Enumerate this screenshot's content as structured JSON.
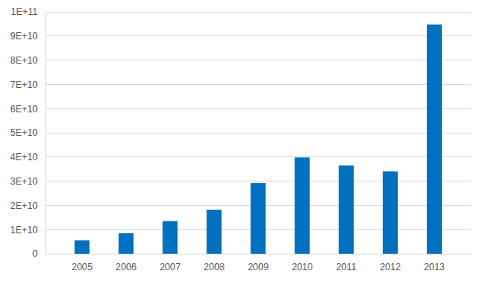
{
  "chart_data": {
    "type": "bar",
    "categories": [
      "2005",
      "2006",
      "2007",
      "2008",
      "2009",
      "2010",
      "2011",
      "2012",
      "2013"
    ],
    "values": [
      5500000000,
      8500000000,
      13500000000,
      18200000000,
      29200000000,
      39800000000,
      36500000000,
      34000000000,
      94700000000
    ],
    "color": "#0070c0",
    "ylim": [
      0,
      100000000000
    ],
    "yticks": [
      0,
      {
        "value": 10000000000,
        "label": "1E+10"
      },
      {
        "value": 20000000000,
        "label": "2E+10"
      },
      {
        "value": 30000000000,
        "label": "3E+10"
      },
      {
        "value": 40000000000,
        "label": "4E+10"
      },
      {
        "value": 50000000000,
        "label": "5E+10"
      },
      {
        "value": 60000000000,
        "label": "6E+10"
      },
      {
        "value": 70000000000,
        "label": "7E+10"
      },
      {
        "value": 80000000000,
        "label": "8E+10"
      },
      {
        "value": 90000000000,
        "label": "9E+10"
      },
      {
        "value": 100000000000,
        "label": "1E+11"
      }
    ],
    "grid": true
  }
}
